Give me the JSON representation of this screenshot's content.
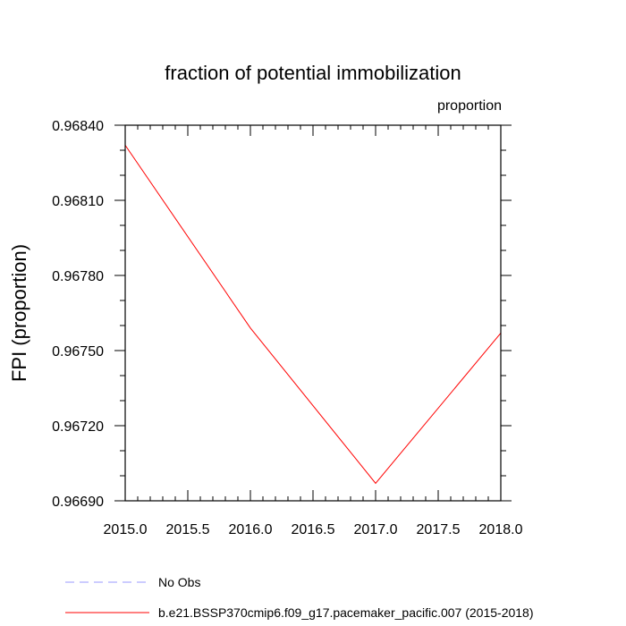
{
  "chart_data": {
    "type": "line",
    "title": "fraction of potential immobilization",
    "units_label": "proportion",
    "xlabel": "",
    "ylabel": "FPI  (proportion)",
    "xlim": [
      2015.0,
      2018.0
    ],
    "ylim": [
      0.9669,
      0.9684
    ],
    "x_ticks": [
      "2015.0",
      "2015.5",
      "2016.0",
      "2016.5",
      "2017.0",
      "2017.5",
      "2018.0"
    ],
    "y_ticks": [
      "0.96840",
      "0.96810",
      "0.96780",
      "0.96750",
      "0.96720",
      "0.96690"
    ],
    "x": [
      2015,
      2016,
      2017,
      2018
    ],
    "series": [
      {
        "name": "b.e21.BSSP370cmip6.f09_g17.pacemaker_pacific.007 (2015-2018)",
        "color": "#ff0000",
        "style": "solid",
        "values": [
          0.96832,
          0.96759,
          0.96697,
          0.96757
        ]
      }
    ],
    "legend": [
      {
        "label": "No Obs",
        "color": "#9999ff",
        "style": "dashed"
      },
      {
        "label": "b.e21.BSSP370cmip6.f09_g17.pacemaker_pacific.007 (2015-2018)",
        "color": "#ff0000",
        "style": "solid"
      }
    ]
  }
}
